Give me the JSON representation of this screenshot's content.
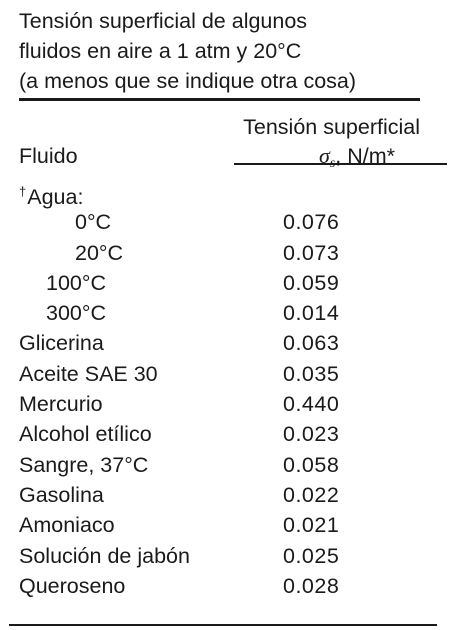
{
  "caption": {
    "line1": "Tensión superficial de algunos",
    "line2": "fluidos en aire a 1 atm y 20°C",
    "line3": "(a menos que se indique otra cosa)"
  },
  "header": {
    "col_fluid": "Fluido",
    "col_value_line1": "Tensión superficial",
    "col_value_symbol": "σ",
    "col_value_subscript": "s",
    "col_value_units": ", N/m*"
  },
  "rows": [
    {
      "dagger": "†",
      "fluid": "Agua:",
      "value": ""
    },
    {
      "fluid": "0°C",
      "value": "0.076",
      "indent": 2
    },
    {
      "fluid": "20°C",
      "value": "0.073",
      "indent": 2
    },
    {
      "fluid": "100°C",
      "value": "0.059",
      "indent": 1
    },
    {
      "fluid": "300°C",
      "value": "0.014",
      "indent": 1
    },
    {
      "fluid": "Glicerina",
      "value": "0.063"
    },
    {
      "fluid": "Aceite SAE 30",
      "value": "0.035"
    },
    {
      "fluid": "Mercurio",
      "value": "0.440"
    },
    {
      "fluid": "Alcohol etílico",
      "value": "0.023"
    },
    {
      "fluid": "Sangre, 37°C",
      "value": "0.058"
    },
    {
      "fluid": "Gasolina",
      "value": "0.022"
    },
    {
      "fluid": "Amoniaco",
      "value": "0.021"
    },
    {
      "fluid": "Solución de jabón",
      "value": "0.025"
    },
    {
      "fluid": "Queroseno",
      "value": "0.028"
    }
  ]
}
